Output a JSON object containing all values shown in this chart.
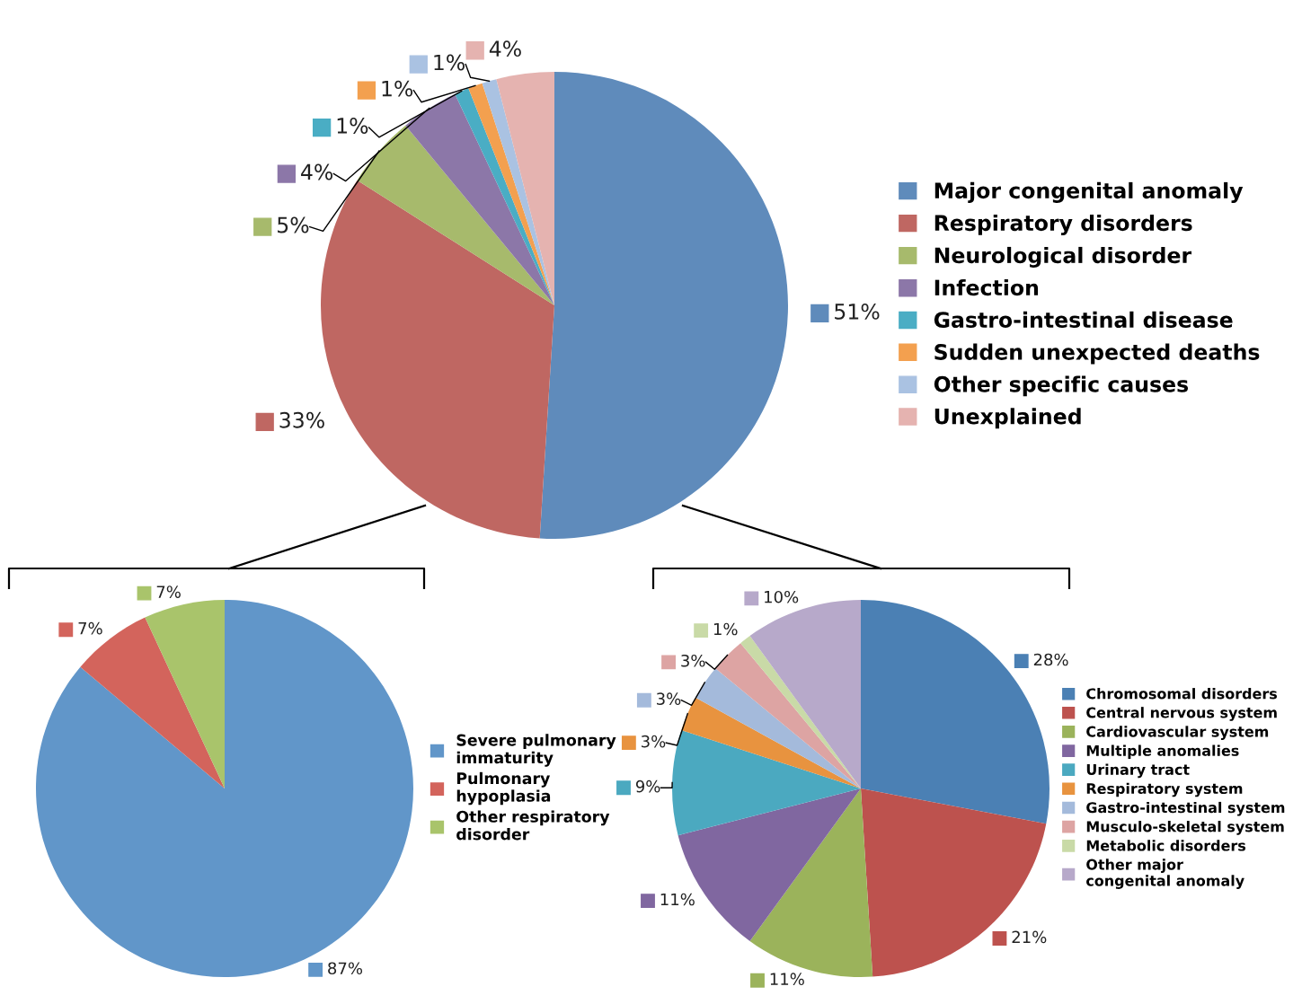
{
  "chart_data": [
    {
      "type": "pie",
      "categories": [
        "Major congenital anomaly",
        "Respiratory disorders",
        "Neurological disorder",
        "Infection",
        "Gastro-intestinal disease",
        "Sudden unexpected deaths",
        "Other specific causes",
        "Unexplained"
      ],
      "values": [
        51,
        33,
        5,
        4,
        1,
        1,
        1,
        4
      ],
      "colors": [
        "#5f8bbb",
        "#bf6762",
        "#a7ba6c",
        "#8c77a8",
        "#4aadc4",
        "#f3a04f",
        "#aac2e2",
        "#e5b3b0"
      ],
      "value_labels": [
        "51%",
        "33%",
        "5%",
        "4%",
        "1%",
        "1%",
        "1%",
        "4%"
      ],
      "legend": "right"
    },
    {
      "type": "pie",
      "categories": [
        "Severe pulmonary immaturity",
        "Pulmonary hypoplasia",
        "Other respiratory disorder"
      ],
      "values": [
        87,
        7,
        7
      ],
      "colors": [
        "#6196c9",
        "#d3645c",
        "#a9c46b"
      ],
      "value_labels": [
        "87%",
        "7%",
        "7%"
      ],
      "legend": "right"
    },
    {
      "type": "pie",
      "categories": [
        "Chromosomal disorders",
        "Central nervous system",
        "Cardiovascular system",
        "Multiple anomalies",
        "Urinary tract",
        "Respiratory system",
        "Gastro-intestinal system",
        "Musculo-skeletal system",
        "Metabolic disorders",
        "Other major congenital anomaly"
      ],
      "values": [
        28,
        21,
        11,
        11,
        9,
        3,
        3,
        3,
        1,
        10
      ],
      "colors": [
        "#4b80b4",
        "#bd524e",
        "#9bb35b",
        "#8067a0",
        "#4ba9c0",
        "#e8933f",
        "#a4badb",
        "#dda4a3",
        "#c9daa7",
        "#b7a9ca"
      ],
      "value_labels": [
        "28%",
        "21%",
        "11%",
        "11%",
        "9%",
        "3%",
        "3%",
        "3%",
        "1%",
        "10%"
      ],
      "legend": "right"
    }
  ]
}
